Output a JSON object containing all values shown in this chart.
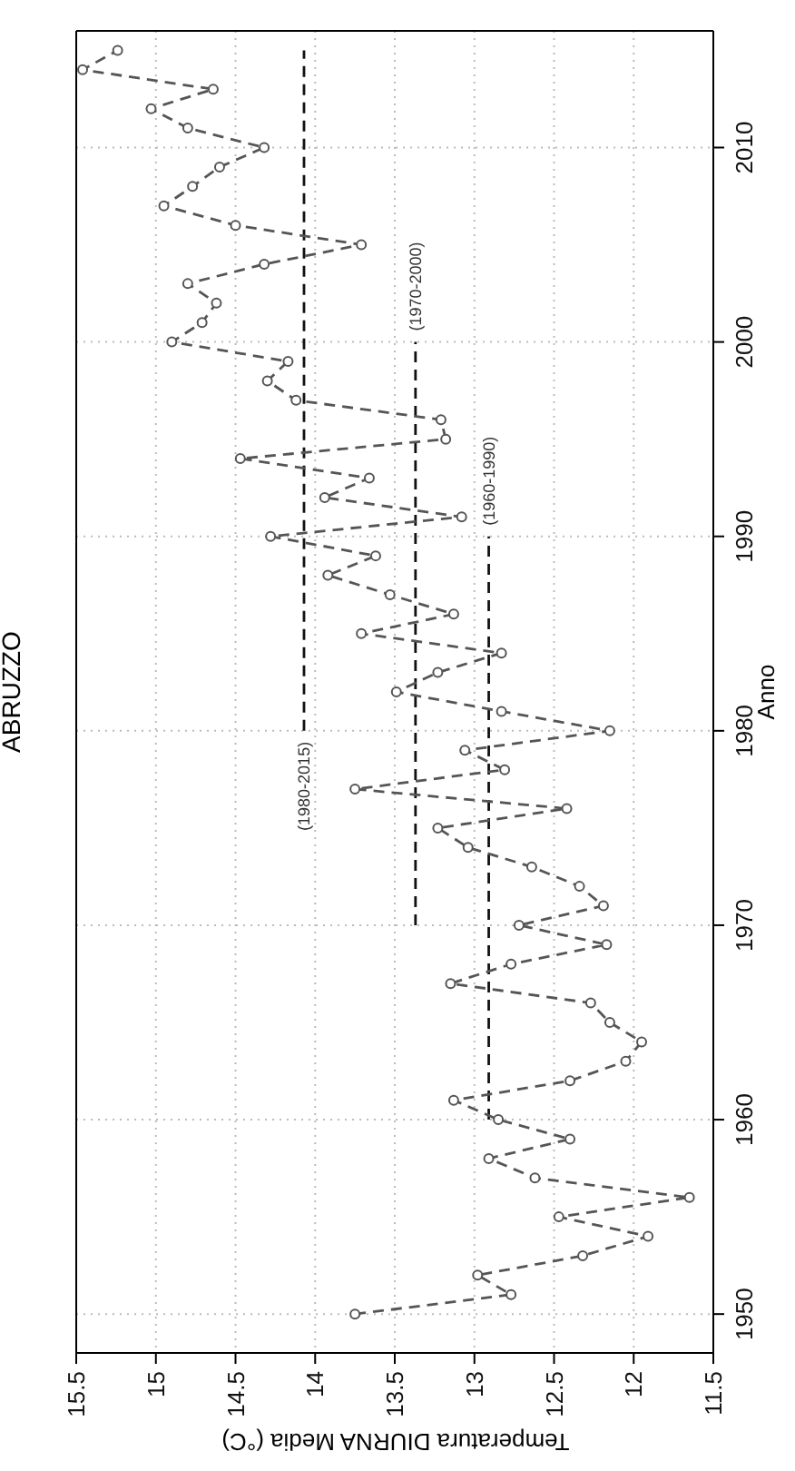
{
  "chart_data": {
    "type": "line",
    "title": "ABRUZZO",
    "xlabel": "Temperatura DIURNA Media (°C)",
    "ylabel": "Anno",
    "xlim": [
      15.5,
      11.5
    ],
    "xticks": [
      15.5,
      15,
      14.5,
      14,
      13.5,
      13,
      12.5,
      12,
      11.5
    ],
    "ylim": [
      1948,
      2016
    ],
    "yticks": [
      1950,
      1960,
      1970,
      1980,
      1990,
      2000,
      2010
    ],
    "grid": true,
    "series": [
      {
        "color": "#555555",
        "marker": "circle",
        "line_style": "dashed",
        "x": [
          13.75,
          12.77,
          12.98,
          12.32,
          11.91,
          12.47,
          11.65,
          12.62,
          12.91,
          12.4,
          12.85,
          13.13,
          12.4,
          12.05,
          11.95,
          12.15,
          12.27,
          13.15,
          12.77,
          12.17,
          12.72,
          12.19,
          12.34,
          12.64,
          13.04,
          13.23,
          12.42,
          13.75,
          12.81,
          13.06,
          12.15,
          12.83,
          13.49,
          13.23,
          12.83,
          13.71,
          13.13,
          13.53,
          13.92,
          13.62,
          14.28,
          13.08,
          13.94,
          13.66,
          14.47,
          13.18,
          13.21,
          14.12,
          14.3,
          14.17,
          14.9,
          14.71,
          14.62,
          14.8,
          14.32,
          13.71,
          14.5,
          14.95,
          14.77,
          14.6,
          14.32,
          14.8,
          15.03,
          14.64,
          15.46,
          15.24
        ],
        "values": [
          1950,
          1951,
          1952,
          1953,
          1954,
          1955,
          1956,
          1957,
          1958,
          1959,
          1960,
          1961,
          1962,
          1963,
          1964,
          1965,
          1966,
          1967,
          1968,
          1969,
          1970,
          1971,
          1972,
          1973,
          1974,
          1975,
          1976,
          1977,
          1978,
          1979,
          1980,
          1981,
          1982,
          1983,
          1984,
          1985,
          1986,
          1987,
          1988,
          1989,
          1990,
          1991,
          1992,
          1993,
          1994,
          1995,
          1996,
          1997,
          1998,
          1999,
          2000,
          2001,
          2002,
          2003,
          2004,
          2005,
          2006,
          2007,
          2008,
          2009,
          2010,
          2011,
          2012,
          2013,
          2014,
          2015
        ]
      },
      {
        "type": "line",
        "color": "#111111",
        "marker": "none",
        "line_style": "dashed",
        "x": [
          12.91,
          12.91
        ],
        "values": [
          1960,
          1990
        ]
      },
      {
        "type": "line",
        "color": "#111111",
        "marker": "none",
        "line_style": "dashed",
        "x": [
          13.37,
          13.37
        ],
        "values": [
          1970,
          2000
        ]
      },
      {
        "type": "line",
        "color": "#111111",
        "marker": "none",
        "line_style": "dashed",
        "x": [
          14.07,
          14.07
        ],
        "values": [
          1980,
          2015
        ]
      }
    ],
    "annotations": [
      {
        "text": "(1960-1990)",
        "x": 12.91,
        "y": 1990
      },
      {
        "text": "(1970-2000)",
        "x": 13.37,
        "y": 2000
      },
      {
        "text": "(1980-2015)",
        "x": 14.07,
        "y": 1980
      }
    ]
  }
}
